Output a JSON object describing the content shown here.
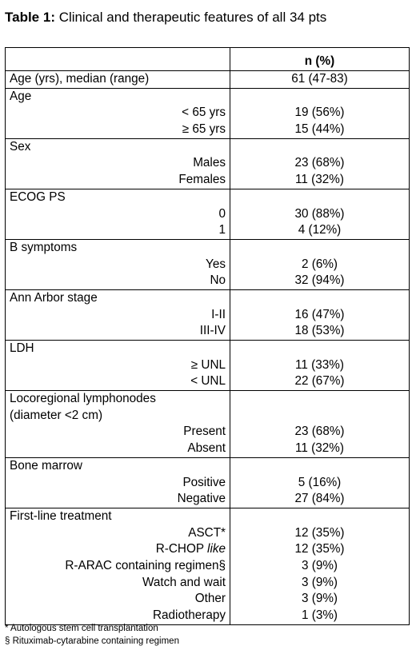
{
  "title": {
    "label": "Table 1:",
    "text": "Clinical and therapeutic features of all 34 pts"
  },
  "table": {
    "header": "n (%)",
    "age_median": {
      "label": "Age (yrs), median (range)",
      "value": "61 (47-83)"
    },
    "groups": [
      {
        "label": "Age",
        "items": [
          {
            "label": "< 65 yrs",
            "value": "19 (56%)"
          },
          {
            "label": "≥ 65 yrs",
            "value": "15 (44%)"
          }
        ]
      },
      {
        "label": "Sex",
        "items": [
          {
            "label": "Males",
            "value": "23 (68%)"
          },
          {
            "label": "Females",
            "value": "11 (32%)"
          }
        ]
      },
      {
        "label": "ECOG PS",
        "items": [
          {
            "label": "0",
            "value": "30 (88%)"
          },
          {
            "label": "1",
            "value": "4 (12%)"
          }
        ]
      },
      {
        "label": "B symptoms",
        "items": [
          {
            "label": "Yes",
            "value": "2 (6%)"
          },
          {
            "label": "No",
            "value": "32 (94%)"
          }
        ]
      },
      {
        "label": "Ann Arbor stage",
        "items": [
          {
            "label": "I-II",
            "value": "16 (47%)"
          },
          {
            "label": "III-IV",
            "value": "18 (53%)"
          }
        ]
      },
      {
        "label": "LDH",
        "items": [
          {
            "label": "≥ UNL",
            "value": "11 (33%)"
          },
          {
            "label": "< UNL",
            "value": "22 (67%)"
          }
        ]
      },
      {
        "label": "Locoregional lymphonodes",
        "label2": "(diameter <2 cm)",
        "items": [
          {
            "label": "Present",
            "value": "23 (68%)"
          },
          {
            "label": "Absent",
            "value": "11 (32%)"
          }
        ]
      },
      {
        "label": "Bone marrow",
        "items": [
          {
            "label": "Positive",
            "value": "5 (16%)"
          },
          {
            "label": "Negative",
            "value": "27 (84%)"
          }
        ]
      },
      {
        "label": "First-line treatment",
        "items": [
          {
            "label": "ASCT*",
            "value": "12 (35%)"
          },
          {
            "label": "R-CHOP",
            "label_italic": "like",
            "value": "12 (35%)"
          },
          {
            "label": "R-ARAC containing regimen§",
            "value": "3 (9%)"
          },
          {
            "label": "Watch and wait",
            "value": "3 (9%)"
          },
          {
            "label": "Other",
            "value": "3 (9%)"
          },
          {
            "label": "Radiotherapy",
            "value": "1 (3%)"
          }
        ]
      }
    ]
  },
  "footnotes": [
    "* Autologous stem cell transplantation",
    "§ Rituximab-cytarabine containing regimen"
  ]
}
